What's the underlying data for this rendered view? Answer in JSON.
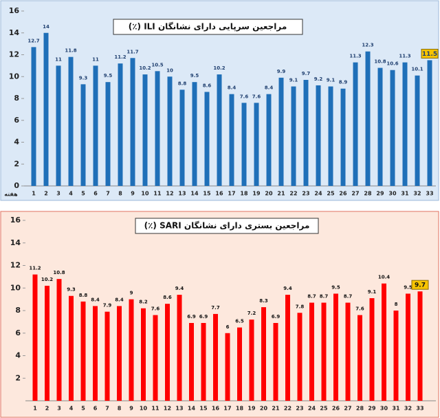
{
  "chart_data": [
    {
      "type": "bar",
      "title": "مراجعین سرپایی دارای نشانگان ILI (٪)",
      "x_label": "هفته",
      "categories": [
        "1",
        "2",
        "3",
        "4",
        "5",
        "6",
        "7",
        "8",
        "9",
        "10",
        "11",
        "12",
        "13",
        "14",
        "15",
        "16",
        "17",
        "18",
        "19",
        "20",
        "21",
        "22",
        "23",
        "24",
        "25",
        "26",
        "27",
        "28",
        "29",
        "30",
        "31",
        "32",
        "33"
      ],
      "values": [
        12.7,
        14,
        11,
        11.8,
        9.3,
        11,
        9.5,
        11.2,
        11.7,
        10.2,
        10.5,
        10,
        8.8,
        9.5,
        8.6,
        10.2,
        8.4,
        7.6,
        7.6,
        8.4,
        9.9,
        9.1,
        9.7,
        9.2,
        9.1,
        8.9,
        11.3,
        12.3,
        10.8,
        10.6,
        11.3,
        10.1,
        11.5
      ],
      "color": "#1f6fb8",
      "ylim": [
        0,
        16
      ],
      "yticks": [
        0,
        2,
        4,
        6,
        8,
        10,
        12,
        14,
        16
      ]
    },
    {
      "type": "bar",
      "title": "مراجعین بستری دارای نشانگان SARI (٪)",
      "categories": [
        "1",
        "2",
        "3",
        "4",
        "5",
        "6",
        "7",
        "8",
        "9",
        "10",
        "11",
        "12",
        "13",
        "14",
        "15",
        "16",
        "17",
        "18",
        "19",
        "20",
        "21",
        "22",
        "23",
        "24",
        "25",
        "26",
        "27",
        "28",
        "29",
        "30",
        "31",
        "32",
        "33"
      ],
      "values": [
        11.2,
        10.2,
        10.8,
        9.3,
        8.8,
        8.4,
        7.9,
        8.4,
        9,
        8.2,
        7.6,
        8.6,
        9.4,
        6.9,
        6.9,
        7.7,
        6,
        6.5,
        7.2,
        8.3,
        6.9,
        9.4,
        7.8,
        8.7,
        8.7,
        9.5,
        8.7,
        7.6,
        9.1,
        10.4,
        8,
        9.5,
        9.7
      ],
      "color": "#ff0000",
      "ylim": [
        0,
        16
      ],
      "yticks": [
        2,
        4,
        6,
        8,
        10,
        12,
        14,
        16
      ]
    }
  ]
}
